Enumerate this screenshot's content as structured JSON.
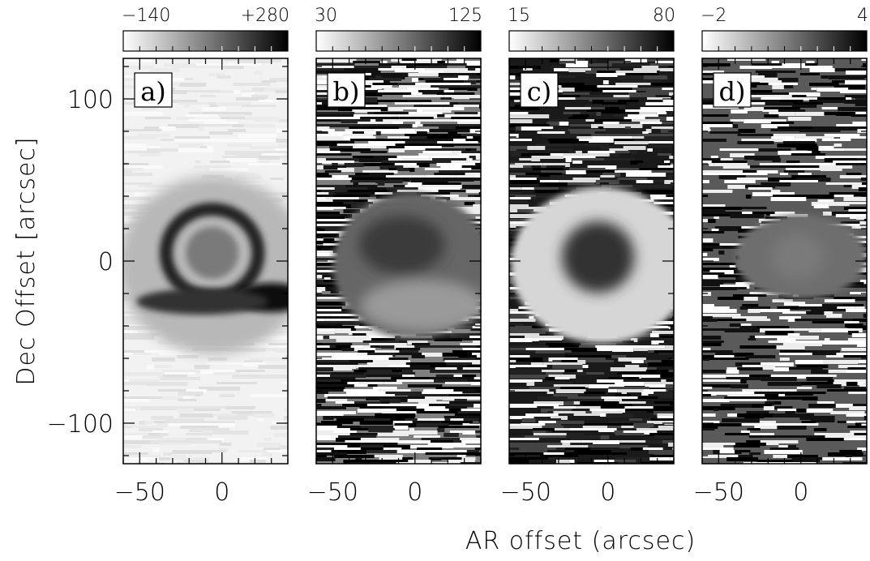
{
  "chart_data": {
    "type": "heatmap",
    "xlabel": "AR offset (arcsec)",
    "ylabel": "Dec Offset [arcsec]",
    "xlim": [
      -60,
      40
    ],
    "ylim": [
      -125,
      125
    ],
    "x_ticks": [
      "−50",
      "0"
    ],
    "y_ticks": [
      "100",
      "0",
      "−100"
    ],
    "panels": [
      {
        "label": "a)",
        "colorbar": {
          "min_label": "−140",
          "max_label": "+280"
        }
      },
      {
        "label": "b)",
        "colorbar": {
          "min_label": "30",
          "max_label": "125"
        }
      },
      {
        "label": "c)",
        "colorbar": {
          "min_label": "15",
          "max_label": "80"
        }
      },
      {
        "label": "d)",
        "colorbar": {
          "min_label": "−2",
          "max_label": "4"
        }
      }
    ]
  }
}
